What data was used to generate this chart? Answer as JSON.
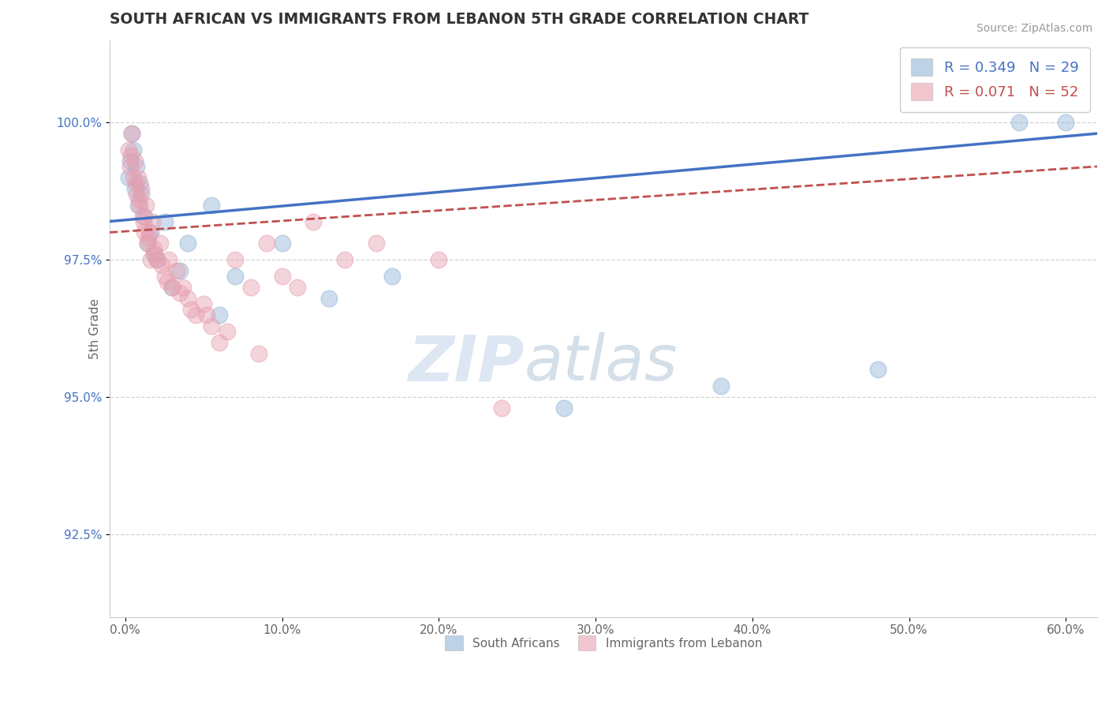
{
  "title": "SOUTH AFRICAN VS IMMIGRANTS FROM LEBANON 5TH GRADE CORRELATION CHART",
  "source": "Source: ZipAtlas.com",
  "xlabel_ticks": [
    "0.0%",
    "10.0%",
    "20.0%",
    "30.0%",
    "40.0%",
    "50.0%",
    "60.0%"
  ],
  "xlabel_vals": [
    0.0,
    10.0,
    20.0,
    30.0,
    40.0,
    50.0,
    60.0
  ],
  "ylabel": "5th Grade",
  "ylabel_ticks": [
    "92.5%",
    "95.0%",
    "97.5%",
    "100.0%"
  ],
  "ylabel_vals": [
    92.5,
    95.0,
    97.5,
    100.0
  ],
  "ylim": [
    91.0,
    101.5
  ],
  "xlim": [
    -1.0,
    62.0
  ],
  "blue_R": 0.349,
  "blue_N": 29,
  "pink_R": 0.071,
  "pink_N": 52,
  "blue_color": "#92b4d8",
  "pink_color": "#e8a0b0",
  "blue_line_color": "#4472c4",
  "pink_line_color": "#c0504d",
  "legend_blue_text_color": "#4472c4",
  "legend_pink_text_color": "#c0504d",
  "blue_scatter_x": [
    0.2,
    0.4,
    0.5,
    0.6,
    0.7,
    0.8,
    1.0,
    1.2,
    1.4,
    1.6,
    2.0,
    2.5,
    3.0,
    4.0,
    5.5,
    7.0,
    10.0,
    13.0,
    17.0,
    28.0,
    38.0,
    48.0,
    57.0,
    60.0,
    0.3,
    0.9,
    1.8,
    3.5,
    6.0
  ],
  "blue_scatter_y": [
    99.0,
    99.8,
    99.5,
    98.8,
    99.2,
    98.5,
    98.7,
    98.3,
    97.8,
    98.0,
    97.5,
    98.2,
    97.0,
    97.8,
    98.5,
    97.2,
    97.8,
    96.8,
    97.2,
    94.8,
    95.2,
    95.5,
    100.0,
    100.0,
    99.3,
    98.9,
    97.6,
    97.3,
    96.5
  ],
  "pink_scatter_x": [
    0.2,
    0.3,
    0.4,
    0.5,
    0.6,
    0.7,
    0.8,
    0.9,
    1.0,
    1.1,
    1.2,
    1.3,
    1.4,
    1.5,
    1.6,
    1.7,
    1.8,
    2.0,
    2.2,
    2.5,
    2.8,
    3.0,
    3.3,
    3.7,
    4.0,
    4.5,
    5.0,
    5.5,
    6.0,
    7.0,
    8.0,
    9.0,
    10.0,
    11.0,
    12.0,
    14.0,
    16.0,
    0.35,
    0.65,
    0.85,
    1.15,
    1.45,
    1.85,
    2.3,
    2.7,
    3.5,
    4.2,
    5.2,
    6.5,
    8.5,
    20.0,
    24.0
  ],
  "pink_scatter_y": [
    99.5,
    99.2,
    99.8,
    99.0,
    99.3,
    98.7,
    99.0,
    98.5,
    98.8,
    98.3,
    98.0,
    98.5,
    97.8,
    98.0,
    97.5,
    98.2,
    97.7,
    97.5,
    97.8,
    97.2,
    97.5,
    97.0,
    97.3,
    97.0,
    96.8,
    96.5,
    96.7,
    96.3,
    96.0,
    97.5,
    97.0,
    97.8,
    97.2,
    97.0,
    98.2,
    97.5,
    97.8,
    99.4,
    98.9,
    98.6,
    98.2,
    97.9,
    97.6,
    97.4,
    97.1,
    96.9,
    96.6,
    96.5,
    96.2,
    95.8,
    97.5,
    94.8
  ],
  "blue_trendline_x": [
    -1.0,
    62.0
  ],
  "blue_trendline_y": [
    98.2,
    99.8
  ],
  "pink_trendline_x": [
    -1.0,
    62.0
  ],
  "pink_trendline_y": [
    98.0,
    99.2
  ],
  "watermark_zip": "ZIP",
  "watermark_atlas": "atlas",
  "background_color": "#ffffff",
  "grid_color": "#d0d0d0"
}
